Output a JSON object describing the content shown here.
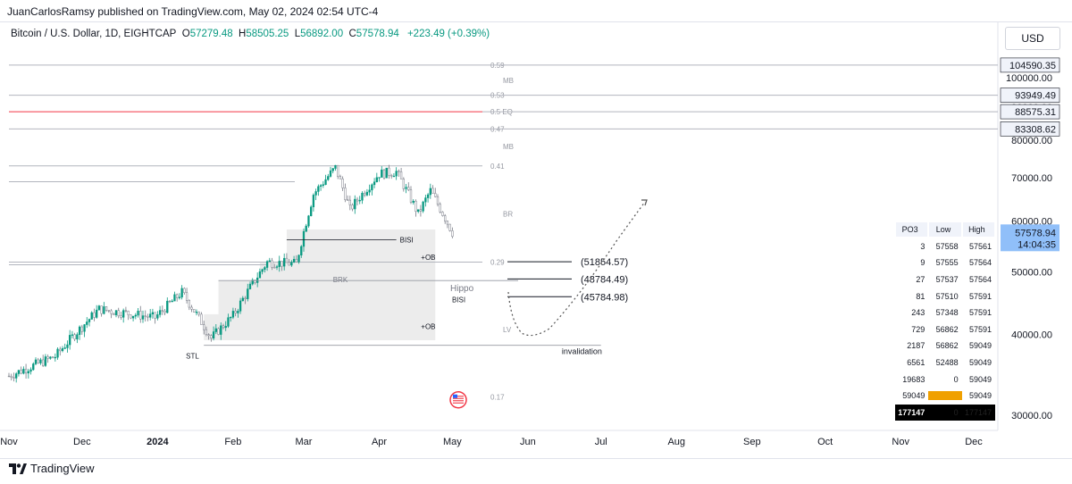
{
  "header": {
    "published": "JuanCarlosRamsy published on TradingView.com, May 02, 2024 02:54 UTC-4",
    "symbol": "Bitcoin / U.S. Dollar, 1D, EIGHTCAP",
    "o_label": "O",
    "o": "57279.48",
    "h_label": "H",
    "h": "58505.25",
    "l_label": "L",
    "l": "56892.00",
    "c_label": "C",
    "c": "57578.94",
    "change": "+223.49 (+0.39%)",
    "currency": "USD"
  },
  "brand": "TradingView",
  "colors": {
    "up": "#089981",
    "grid": "#b2b5be",
    "eq_line": "#f23645",
    "axis_text": "#131722",
    "zone": "#ebebeb",
    "price_tag": "#2962ff",
    "orange": "#f0a000"
  },
  "chart_data": {
    "type": "candlestick",
    "title": "Bitcoin / U.S. Dollar, 1D, EIGHTCAP",
    "ylabel": "USD",
    "y_axis": {
      "type": "log",
      "range": [
        29000,
        113000
      ],
      "ticks": [
        "30000.00",
        "40000.00",
        "50000.00",
        "60000.00",
        "70000.00",
        "80000.00",
        "90000.00",
        "100000.00"
      ]
    },
    "x_ticks": [
      "Nov",
      "Dec",
      "2024",
      "Feb",
      "Mar",
      "Apr",
      "May",
      "Jun",
      "Jul",
      "Aug",
      "Sep",
      "Oct",
      "Nov",
      "Dec"
    ],
    "price_path_keypoints": [
      {
        "date": "2023-11-01",
        "price": 34500
      },
      {
        "date": "2023-11-20",
        "price": 37000
      },
      {
        "date": "2023-12-08",
        "price": 43800
      },
      {
        "date": "2023-12-31",
        "price": 42500
      },
      {
        "date": "2024-01-11",
        "price": 46500
      },
      {
        "date": "2024-01-23",
        "price": 39500
      },
      {
        "date": "2024-02-01",
        "price": 42800
      },
      {
        "date": "2024-02-15",
        "price": 51800
      },
      {
        "date": "2024-02-27",
        "price": 51500
      },
      {
        "date": "2024-03-05",
        "price": 66000
      },
      {
        "date": "2024-03-14",
        "price": 72500
      },
      {
        "date": "2024-03-20",
        "price": 62500
      },
      {
        "date": "2024-04-01",
        "price": 71000
      },
      {
        "date": "2024-04-08",
        "price": 71500
      },
      {
        "date": "2024-04-17",
        "price": 61500
      },
      {
        "date": "2024-04-22",
        "price": 66800
      },
      {
        "date": "2024-05-01",
        "price": 57578.94
      }
    ],
    "right_tags": [
      {
        "value": "104590.35",
        "style": "gray"
      },
      {
        "value": "93949.49",
        "style": "gray"
      },
      {
        "value": "88575.31",
        "style": "gray"
      },
      {
        "value": "83308.62",
        "style": "gray"
      },
      {
        "value": "57578.94",
        "style": "blue",
        "countdown": "14:04:35"
      }
    ],
    "fib_levels": [
      {
        "label": "0.59",
        "price": 104590
      },
      {
        "label": "MB",
        "price": 99000
      },
      {
        "label": "0.53",
        "price": 93949
      },
      {
        "label": "0.5 EQ",
        "price": 88575
      },
      {
        "label": "0.47",
        "price": 83308
      },
      {
        "label": "MB",
        "price": 78200
      },
      {
        "label": "0.41",
        "price": 73000
      },
      {
        "label": "BR",
        "price": 61500
      },
      {
        "label": "0.29",
        "price": 51800
      },
      {
        "label": "LV",
        "price": 40700
      },
      {
        "label": "0.17",
        "price": 32000
      }
    ],
    "annotations": {
      "bisi_top": "BISI",
      "ob1": "+OB",
      "brk": "BRK",
      "hippo": "Hippo",
      "bisi_low": "BISI",
      "ob2": "+OB",
      "stl": "STL",
      "invalidation": "invalidation",
      "targets": [
        "(51854.57)",
        "(48784.49)",
        "(45784.98)"
      ]
    }
  },
  "po3_table": {
    "headers": [
      "PO3",
      "Low",
      "High"
    ],
    "rows": [
      [
        "3",
        "57558",
        "57561"
      ],
      [
        "9",
        "57555",
        "57564"
      ],
      [
        "27",
        "57537",
        "57564"
      ],
      [
        "81",
        "57510",
        "57591"
      ],
      [
        "243",
        "57348",
        "57591"
      ],
      [
        "729",
        "56862",
        "57591"
      ],
      [
        "2187",
        "56862",
        "59049"
      ],
      [
        "6561",
        "52488",
        "59049"
      ],
      [
        "19683",
        "0",
        "59049"
      ],
      [
        "59049",
        "0",
        "59049"
      ],
      [
        "177147",
        "0",
        "177147"
      ]
    ]
  }
}
